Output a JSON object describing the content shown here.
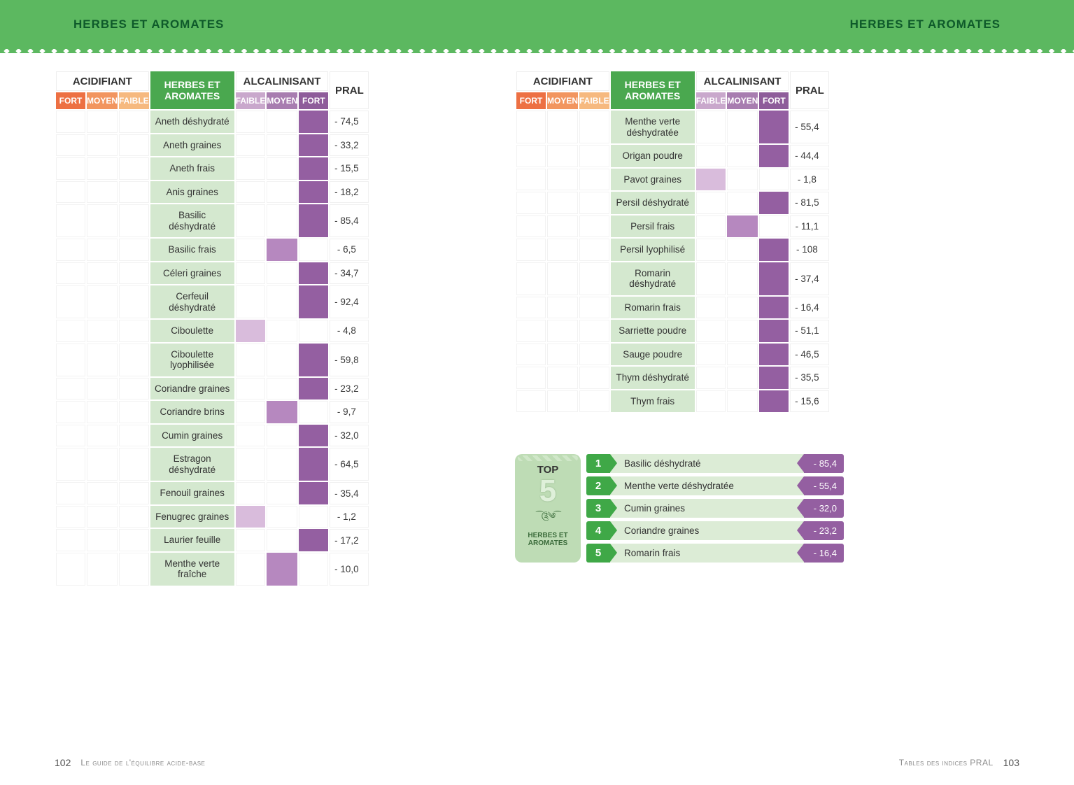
{
  "header": {
    "title_left": "HERBES ET AROMATES",
    "title_right": "HERBES ET AROMATES"
  },
  "table_headers": {
    "acidifiant": "ACIDIFIANT",
    "category": "HERBES ET AROMATES",
    "alcalinisant": "ALCALINISANT",
    "pral": "PRAL",
    "fort": "FORT",
    "moyen": "MOYEN",
    "faible": "FAIBLE"
  },
  "colors": {
    "header_bg": "#5cb860",
    "cat_header_bg": "#4aa84f",
    "acid_fort": "#ed7043",
    "acid_moyen": "#f2955f",
    "acid_faible": "#f6b97f",
    "alk_faible": "#c9a8cc",
    "alk_moyen": "#a87db0",
    "alk_fort": "#8e5c9a",
    "cell_fort_k": "#945fa1",
    "cell_moyen_k": "#b688bf",
    "cell_faible_k": "#d9bcdc",
    "name_bg": "#d4e8cf",
    "top5_badge_bg": "#bedcb5",
    "top5_row_bg": "#dcecd6",
    "top5_rank_bg": "#3fa847",
    "top5_val_bg": "#945fa1"
  },
  "left_table": [
    {
      "name": "Aneth déshydraté",
      "level": "fort_k",
      "pral": "- 74,5"
    },
    {
      "name": "Aneth graines",
      "level": "fort_k",
      "pral": "- 33,2"
    },
    {
      "name": "Aneth frais",
      "level": "fort_k",
      "pral": "- 15,5"
    },
    {
      "name": "Anis graines",
      "level": "fort_k",
      "pral": "- 18,2"
    },
    {
      "name": "Basilic déshydraté",
      "level": "fort_k",
      "pral": "- 85,4"
    },
    {
      "name": "Basilic frais",
      "level": "moyen_k",
      "pral": "- 6,5"
    },
    {
      "name": "Céleri graines",
      "level": "fort_k",
      "pral": "- 34,7"
    },
    {
      "name": "Cerfeuil déshydraté",
      "level": "fort_k",
      "pral": "- 92,4"
    },
    {
      "name": "Ciboulette",
      "level": "faible_k",
      "pral": "- 4,8"
    },
    {
      "name": "Ciboulette lyophilisée",
      "level": "fort_k",
      "pral": "- 59,8"
    },
    {
      "name": "Coriandre graines",
      "level": "fort_k",
      "pral": "- 23,2"
    },
    {
      "name": "Coriandre brins",
      "level": "moyen_k",
      "pral": "- 9,7"
    },
    {
      "name": "Cumin graines",
      "level": "fort_k",
      "pral": "- 32,0"
    },
    {
      "name": "Estragon déshydraté",
      "level": "fort_k",
      "pral": "- 64,5"
    },
    {
      "name": "Fenouil graines",
      "level": "fort_k",
      "pral": "- 35,4"
    },
    {
      "name": "Fenugrec graines",
      "level": "faible_k",
      "pral": "- 1,2"
    },
    {
      "name": "Laurier feuille",
      "level": "fort_k",
      "pral": "- 17,2"
    },
    {
      "name": "Menthe verte fraîche",
      "level": "moyen_k",
      "pral": "- 10,0"
    }
  ],
  "right_table": [
    {
      "name": "Menthe verte déshydratée",
      "level": "fort_k",
      "pral": "- 55,4"
    },
    {
      "name": "Origan poudre",
      "level": "fort_k",
      "pral": "- 44,4"
    },
    {
      "name": "Pavot graines",
      "level": "faible_k",
      "pral": "- 1,8"
    },
    {
      "name": "Persil déshydraté",
      "level": "fort_k",
      "pral": "- 81,5"
    },
    {
      "name": "Persil frais",
      "level": "moyen_k",
      "pral": "- 11,1"
    },
    {
      "name": "Persil lyophilisé",
      "level": "fort_k",
      "pral": "- 108"
    },
    {
      "name": "Romarin déshydraté",
      "level": "fort_k",
      "pral": "- 37,4"
    },
    {
      "name": "Romarin frais",
      "level": "fort_k",
      "pral": "- 16,4"
    },
    {
      "name": "Sarriette poudre",
      "level": "fort_k",
      "pral": "- 51,1"
    },
    {
      "name": "Sauge poudre",
      "level": "fort_k",
      "pral": "- 46,5"
    },
    {
      "name": "Thym déshydraté",
      "level": "fort_k",
      "pral": "- 35,5"
    },
    {
      "name": "Thym frais",
      "level": "fort_k",
      "pral": "- 15,6"
    }
  ],
  "top5": {
    "label": "TOP",
    "number": "5",
    "category": "HERBES ET AROMATES",
    "items": [
      {
        "rank": "1",
        "name": "Basilic déshydraté",
        "value": "- 85,4"
      },
      {
        "rank": "2",
        "name": "Menthe verte déshydratée",
        "value": "- 55,4"
      },
      {
        "rank": "3",
        "name": "Cumin graines",
        "value": "- 32,0"
      },
      {
        "rank": "4",
        "name": "Coriandre graines",
        "value": "- 23,2"
      },
      {
        "rank": "5",
        "name": "Romarin frais",
        "value": "- 16,4"
      }
    ]
  },
  "footer": {
    "page_left": "102",
    "title_left": "Le guide de l'équilibre acide-base",
    "title_right": "Tables des indices PRAL",
    "page_right": "103"
  }
}
